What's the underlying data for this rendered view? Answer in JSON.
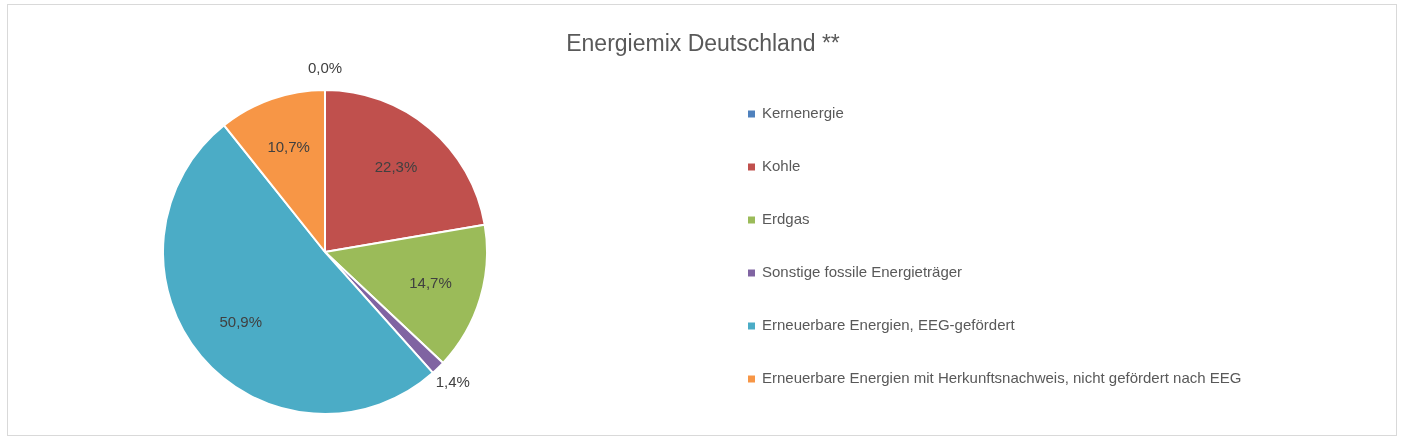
{
  "chart_data": {
    "type": "pie",
    "title": "Energiemix Deutschland **",
    "categories": [
      "Kernenergie",
      "Kohle",
      "Erdgas",
      "Sonstige fossile Energieträger",
      "Erneuerbare Energien, EEG-gefördert",
      "Erneuerbare Energien mit Herkunftsnachweis, nicht gefördert nach EEG"
    ],
    "values": [
      0.0,
      22.3,
      14.7,
      1.4,
      50.9,
      10.7
    ],
    "value_labels": [
      "0,0%",
      "22,3%",
      "14,7%",
      "1,4%",
      "50,9%",
      "10,7%"
    ],
    "colors": [
      "#4f81bd",
      "#c0504d",
      "#9bbb59",
      "#8064a2",
      "#4bacc6",
      "#f79646"
    ],
    "legend": "right"
  }
}
